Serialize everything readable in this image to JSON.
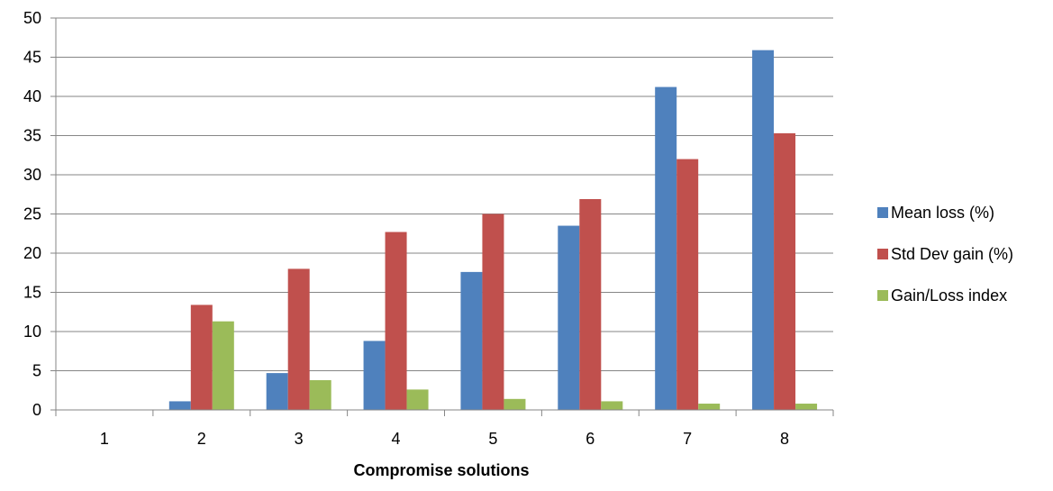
{
  "chart_data": {
    "type": "bar",
    "title": "",
    "xlabel": "Compromise solutions",
    "ylabel": "",
    "ylim": [
      0,
      50
    ],
    "y_ticks": [
      "0",
      "5",
      "10",
      "15",
      "20",
      "25",
      "30",
      "35",
      "40",
      "45",
      "50"
    ],
    "categories": [
      "1",
      "2",
      "3",
      "4",
      "5",
      "6",
      "7",
      "8"
    ],
    "grid": "horizontal",
    "legend_position": "right",
    "series": [
      {
        "name": "Mean loss (%)",
        "color": "#4f81bd",
        "values": [
          0,
          1.1,
          4.7,
          8.8,
          17.6,
          23.5,
          41.2,
          45.9
        ]
      },
      {
        "name": "Std Dev gain (%)",
        "color": "#c0504d",
        "values": [
          0,
          13.4,
          18.0,
          22.7,
          25.0,
          26.9,
          32.0,
          35.3
        ]
      },
      {
        "name": "Gain/Loss index",
        "color": "#9bbb59",
        "values": [
          0,
          11.3,
          3.8,
          2.6,
          1.4,
          1.1,
          0.8,
          0.8
        ]
      }
    ]
  }
}
